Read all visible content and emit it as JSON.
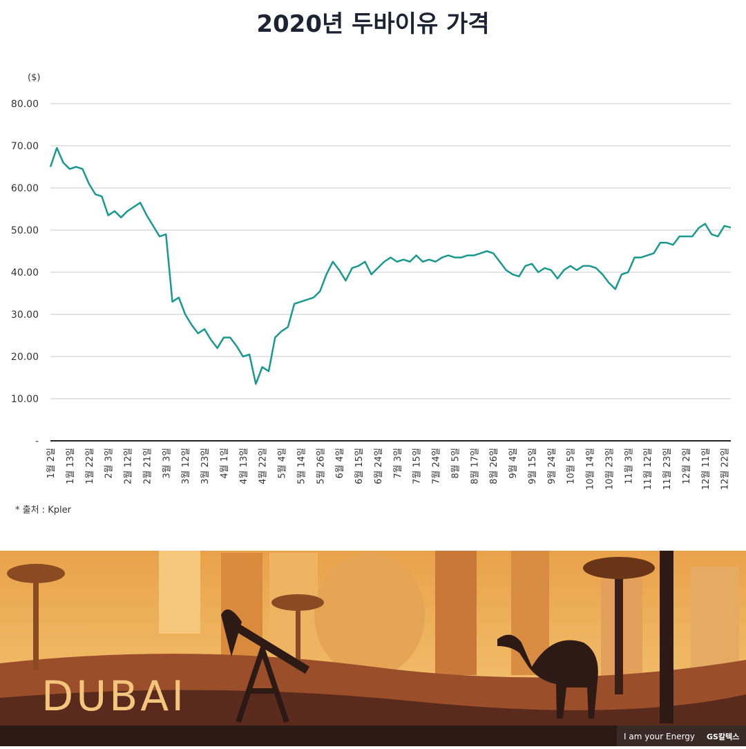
{
  "chart_data": {
    "type": "line",
    "title": "2020년 두바이유 가격",
    "y_unit": "($)",
    "source": "* 출처 : Kpler",
    "categories": [
      "1월 2일",
      null,
      null,
      "1월 13일",
      null,
      null,
      "1월 22일",
      null,
      null,
      "2월 3일",
      null,
      null,
      "2월 12일",
      null,
      null,
      "2월 21일",
      null,
      null,
      "3월 3일",
      null,
      null,
      "3월 12일",
      null,
      null,
      "3월 23일",
      null,
      null,
      "4월 1일",
      null,
      null,
      "4월 13일",
      null,
      null,
      "4월 22일",
      null,
      null,
      "5월 4일",
      null,
      null,
      "5월 14일",
      null,
      null,
      "5월 26일",
      null,
      null,
      "6월 4일",
      null,
      null,
      "6월 15일",
      null,
      null,
      "6월 24일",
      null,
      null,
      "7월 3일",
      null,
      null,
      "7월 15일",
      null,
      null,
      "7월 24일",
      null,
      null,
      "8월 5일",
      null,
      null,
      "8월 17일",
      null,
      null,
      "8월 26일",
      null,
      null,
      "9월 4일",
      null,
      null,
      "9월 15일",
      null,
      null,
      "9월 24일",
      null,
      null,
      "10월 5일",
      null,
      null,
      "10월 14일",
      null,
      null,
      "10월 23일",
      null,
      null,
      "11월 3일",
      null,
      null,
      "11월 12일",
      null,
      null,
      "11월 23일",
      null,
      null,
      "12월 2일",
      null,
      null,
      "12월 11일",
      null,
      null,
      "12월 22일",
      null
    ],
    "series": [
      {
        "name": "두바이유",
        "color": "#17998f",
        "values": [
          65.0,
          69.5,
          66.0,
          64.5,
          65.0,
          64.5,
          61.0,
          58.5,
          58.0,
          53.5,
          54.5,
          53.0,
          54.5,
          55.5,
          56.5,
          53.5,
          51.0,
          48.5,
          49.0,
          33.0,
          34.0,
          30.0,
          27.5,
          25.5,
          26.5,
          24.0,
          22.0,
          24.5,
          24.5,
          22.5,
          20.0,
          20.5,
          13.5,
          17.5,
          16.5,
          24.5,
          26.0,
          27.0,
          32.5,
          33.0,
          33.5,
          34.0,
          35.5,
          39.5,
          42.5,
          40.5,
          38.0,
          41.0,
          41.5,
          42.5,
          39.5,
          41.0,
          42.5,
          43.5,
          42.5,
          43.0,
          42.5,
          44.0,
          42.5,
          43.0,
          42.5,
          43.5,
          44.0,
          43.5,
          43.5,
          44.0,
          44.0,
          44.5,
          45.0,
          44.5,
          42.5,
          40.5,
          39.5,
          39.0,
          41.5,
          42.0,
          40.0,
          41.0,
          40.5,
          38.5,
          40.5,
          41.5,
          40.5,
          41.5,
          41.5,
          41.0,
          39.5,
          37.5,
          36.0,
          39.5,
          40.0,
          43.5,
          43.5,
          44.0,
          44.5,
          47.0,
          47.0,
          46.5,
          48.5,
          48.5,
          48.5,
          50.5,
          51.5,
          49.0,
          48.5,
          51.0,
          50.6
        ]
      }
    ],
    "ylim": [
      0,
      80
    ],
    "yticks": [
      {
        "value": 0,
        "label": "-"
      },
      {
        "value": 10,
        "label": "10.00"
      },
      {
        "value": 20,
        "label": "20.00"
      },
      {
        "value": 30,
        "label": "30.00"
      },
      {
        "value": 40,
        "label": "40.00"
      },
      {
        "value": 50,
        "label": "50.00"
      },
      {
        "value": 60,
        "label": "60.00"
      },
      {
        "value": 70,
        "label": "70.00"
      },
      {
        "value": 80,
        "label": "80.00"
      }
    ],
    "grid": true
  },
  "banner": {
    "city": "DUBAI",
    "slogan": "I am your Energy",
    "brand": "GS칼텍스"
  }
}
